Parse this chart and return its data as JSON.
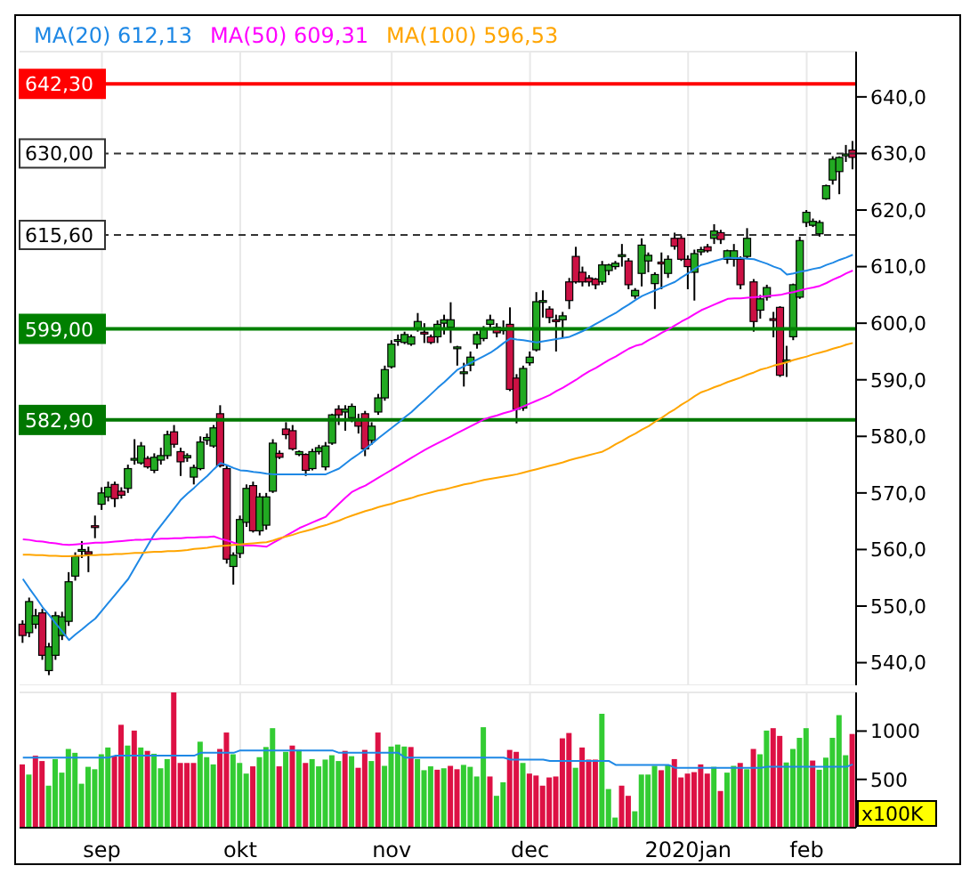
{
  "chart_data": [
    {
      "type": "candlestick",
      "legend": "top left",
      "grid": true,
      "tick_labels": "y",
      "categories": [
        null,
        null,
        null,
        null,
        null,
        null,
        null,
        null,
        null,
        null,
        null,
        null,
        null,
        null,
        null,
        null,
        null,
        null,
        null,
        null,
        null,
        null,
        null,
        null,
        null,
        null,
        null,
        null,
        null,
        null,
        null,
        null,
        null,
        null,
        null,
        null,
        null,
        null,
        null,
        null,
        null,
        null,
        null,
        null,
        null,
        null,
        null,
        null,
        null,
        null,
        null,
        null,
        null,
        null,
        null,
        null,
        null,
        null,
        null,
        null,
        null,
        null,
        null,
        null,
        null,
        null,
        null,
        null,
        null,
        null,
        null,
        null,
        null,
        null,
        null,
        null,
        null,
        null,
        null,
        null,
        null,
        null,
        null,
        null,
        null,
        null,
        null,
        null,
        null,
        null,
        null,
        null,
        null,
        null,
        null,
        null,
        null,
        null,
        null,
        null,
        null,
        null,
        null,
        null,
        null,
        null,
        null,
        null,
        null,
        null,
        null,
        null,
        null,
        null,
        null,
        null,
        null,
        null,
        null,
        null,
        null,
        null,
        null,
        null,
        null,
        null,
        null
      ],
      "ohlc": [
        [
          546.8,
          547.5,
          543.5,
          544.8
        ],
        [
          545.3,
          551.5,
          544.5,
          550.8
        ],
        [
          546.8,
          549.5,
          546,
          548.3
        ],
        [
          548.8,
          549.5,
          540.5,
          541.3
        ],
        [
          538.6,
          543.5,
          537.8,
          542.8
        ],
        [
          541.3,
          549,
          540.5,
          548.3
        ],
        [
          544.8,
          549,
          544,
          548.1
        ],
        [
          547.3,
          556,
          546.5,
          554.3
        ],
        [
          555.3,
          559.5,
          554.5,
          558.8
        ],
        [
          559.8,
          561.5,
          558.5,
          560
        ],
        [
          559.6,
          560.5,
          556,
          559.2
        ],
        [
          564.2,
          566,
          562,
          564
        ],
        [
          568,
          571,
          567,
          570
        ],
        [
          569.3,
          572,
          568.5,
          571
        ],
        [
          571.5,
          572,
          567.5,
          569
        ],
        [
          570.3,
          571,
          569,
          569.6
        ],
        [
          570.8,
          575,
          570,
          574.3
        ],
        [
          576,
          579.5,
          575,
          576.1
        ],
        [
          575.3,
          579,
          575,
          578.3
        ],
        [
          576.1,
          576.5,
          574.3,
          574.6
        ],
        [
          574,
          577,
          573.5,
          576.3
        ],
        [
          575.8,
          578,
          575,
          576.6
        ],
        [
          576.6,
          581,
          576,
          580.3
        ],
        [
          580.8,
          582,
          578,
          578.6
        ],
        [
          577.3,
          578,
          573,
          575.5
        ],
        [
          576.2,
          577,
          575.5,
          576.6
        ],
        [
          572.8,
          575,
          571.5,
          574.5
        ],
        [
          574.3,
          580,
          574,
          579
        ],
        [
          579.3,
          580.5,
          578.5,
          579.8
        ],
        [
          578.3,
          582,
          578,
          581.5
        ],
        [
          584,
          585.5,
          574.5,
          574.8
        ],
        [
          574.3,
          575,
          557.5,
          558.3
        ],
        [
          557,
          559.5,
          553.8,
          559
        ],
        [
          559.3,
          566,
          558.5,
          565.3
        ],
        [
          564.8,
          571.5,
          564,
          570.8
        ],
        [
          571.3,
          572,
          563,
          563.3
        ],
        [
          563.3,
          570,
          562.5,
          569.3
        ],
        [
          564.3,
          570,
          563.5,
          569.3
        ],
        [
          570.3,
          579.5,
          570,
          578.8
        ],
        [
          577,
          577.5,
          576,
          576.3
        ],
        [
          581.3,
          582.5,
          579.5,
          580.3
        ],
        [
          581,
          582,
          577.5,
          577.8
        ],
        [
          576.8,
          577.5,
          576.5,
          577.3
        ],
        [
          576.8,
          577,
          573,
          574
        ],
        [
          574.3,
          577.8,
          574,
          577.3
        ],
        [
          577.3,
          578.5,
          576.8,
          578
        ],
        [
          574.6,
          579,
          574,
          578.3
        ],
        [
          578.8,
          584,
          578.5,
          583.8
        ],
        [
          584.8,
          585.5,
          582,
          583.8
        ],
        [
          584.3,
          585.5,
          581,
          584.8
        ],
        [
          583.3,
          585.8,
          582.5,
          585.3
        ],
        [
          583,
          584,
          580.5,
          581.8
        ],
        [
          584,
          584.5,
          576.5,
          577.8
        ],
        [
          579.3,
          582.5,
          578.5,
          581.8
        ],
        [
          584.3,
          587.5,
          583.8,
          586.8
        ],
        [
          586.8,
          592.5,
          586.3,
          591.8
        ],
        [
          592.3,
          597,
          592,
          596.3
        ],
        [
          597,
          598,
          596,
          597.1
        ],
        [
          596.6,
          598.5,
          596.3,
          598
        ],
        [
          596.3,
          598,
          596,
          597.6
        ],
        [
          599,
          601.8,
          598.5,
          600.3
        ],
        [
          598.4,
          600,
          596.5,
          598.3
        ],
        [
          597.6,
          598,
          596.3,
          596.6
        ],
        [
          597.6,
          600.5,
          596.5,
          599.8
        ],
        [
          600,
          601.5,
          598,
          600.6
        ],
        [
          599.3,
          603.7,
          596.5,
          600.6
        ],
        [
          595.6,
          596,
          592.5,
          595.8
        ],
        [
          591.3,
          593,
          588.8,
          591.4
        ],
        [
          592.6,
          595,
          591.5,
          594
        ],
        [
          596.3,
          598.5,
          595.5,
          598
        ],
        [
          597.3,
          599.5,
          596.8,
          599
        ],
        [
          599.8,
          601.5,
          599,
          600.6
        ],
        [
          599.3,
          600,
          597.5,
          598.3
        ],
        [
          599,
          600.5,
          598,
          598.9
        ],
        [
          599.8,
          602.8,
          588,
          588.3
        ],
        [
          590.3,
          591,
          582.3,
          584.8
        ],
        [
          585,
          592.5,
          584.5,
          592
        ],
        [
          593,
          595,
          592.5,
          594
        ],
        [
          595.3,
          605.5,
          595,
          603.8
        ],
        [
          603.8,
          605.8,
          601,
          604
        ],
        [
          602.5,
          603,
          600,
          601
        ],
        [
          600.6,
          601.5,
          595,
          600.5
        ],
        [
          600.6,
          602,
          597.5,
          601.3
        ],
        [
          607.3,
          608,
          602.5,
          604
        ],
        [
          611.8,
          613.5,
          607,
          607.3
        ],
        [
          609,
          610,
          606.5,
          607.3
        ],
        [
          608,
          608.5,
          606.5,
          607.3
        ],
        [
          607.8,
          608,
          606,
          606.8
        ],
        [
          607.3,
          611,
          606.8,
          610.3
        ],
        [
          609.3,
          610.5,
          608.5,
          610.3
        ],
        [
          610,
          611,
          609.5,
          610.6
        ],
        [
          612,
          614,
          610,
          612.1
        ],
        [
          611,
          611.5,
          606,
          606.8
        ],
        [
          604.8,
          606.2,
          604.3,
          605.8
        ],
        [
          608.8,
          615,
          606.5,
          613.8
        ],
        [
          611,
          612.5,
          609,
          612
        ],
        [
          607,
          609,
          602.5,
          608.6
        ],
        [
          610.8,
          612.5,
          606,
          610.7
        ],
        [
          608.8,
          612,
          608,
          611.3
        ],
        [
          615,
          616,
          613,
          613.6
        ],
        [
          615,
          615.5,
          611,
          611.3
        ],
        [
          611.3,
          612,
          606,
          610
        ],
        [
          609,
          613,
          604,
          612.3
        ],
        [
          612.6,
          613.5,
          612,
          613
        ],
        [
          613.5,
          614,
          612.5,
          612.8
        ],
        [
          615,
          617.5,
          614,
          616.3
        ],
        [
          616,
          616.5,
          614,
          614.8
        ],
        [
          611.3,
          613,
          610.5,
          612.8
        ],
        [
          611.3,
          614,
          610,
          612.8
        ],
        [
          611.3,
          611.8,
          606,
          606.8
        ],
        [
          611.8,
          616.8,
          611.5,
          615
        ],
        [
          607.3,
          607.8,
          598.5,
          600.3
        ],
        [
          602.3,
          605,
          600.8,
          604.3
        ],
        [
          604.6,
          606.8,
          604,
          606.3
        ],
        [
          600.8,
          602,
          597.5,
          600.7
        ],
        [
          602.8,
          603,
          590.5,
          590.8
        ],
        [
          593.3,
          596,
          590.5,
          593.5
        ],
        [
          597.6,
          607,
          597,
          606.8
        ],
        [
          604.6,
          615.3,
          604.3,
          614.6
        ],
        [
          617.8,
          620,
          617,
          619.6
        ],
        [
          617.3,
          618.5,
          617,
          618
        ],
        [
          615.8,
          618.2,
          615.3,
          617.8
        ],
        [
          622,
          624.5,
          621.8,
          624.3
        ],
        [
          625.3,
          629.5,
          624.5,
          629
        ],
        [
          626.8,
          629.5,
          622.8,
          629.3
        ],
        [
          629.8,
          631.5,
          628.5,
          629.9
        ],
        [
          630.6,
          632.2,
          627.2,
          629.3
        ]
      ],
      "colors": [
        "#cc1144",
        "#22aa22",
        "#22aa22",
        "#cc1144",
        "#22aa22",
        "#22aa22",
        "#22aa22",
        "#22aa22",
        "#22aa22",
        "#22aa22",
        "#cc1144",
        "#cc1144",
        "#22aa22",
        "#22aa22",
        "#cc1144",
        "#cc1144",
        "#22aa22",
        "#22aa22",
        "#22aa22",
        "#cc1144",
        "#22aa22",
        "#22aa22",
        "#22aa22",
        "#cc1144",
        "#cc1144",
        "#22aa22",
        "#22aa22",
        "#22aa22",
        "#22aa22",
        "#22aa22",
        "#cc1144",
        "#cc1144",
        "#22aa22",
        "#22aa22",
        "#22aa22",
        "#cc1144",
        "#22aa22",
        "#22aa22",
        "#22aa22",
        "#cc1144",
        "#cc1144",
        "#cc1144",
        "#22aa22",
        "#cc1144",
        "#22aa22",
        "#22aa22",
        "#22aa22",
        "#22aa22",
        "#cc1144",
        "#22aa22",
        "#22aa22",
        "#cc1144",
        "#cc1144",
        "#22aa22",
        "#22aa22",
        "#22aa22",
        "#22aa22",
        "#22aa22",
        "#22aa22",
        "#22aa22",
        "#22aa22",
        "#cc1144",
        "#cc1144",
        "#22aa22",
        "#22aa22",
        "#22aa22",
        "#22aa22",
        "#22aa22",
        "#22aa22",
        "#22aa22",
        "#22aa22",
        "#22aa22",
        "#cc1144",
        "#cc1144",
        "#cc1144",
        "#cc1144",
        "#22aa22",
        "#22aa22",
        "#22aa22",
        "#22aa22",
        "#cc1144",
        "#cc1144",
        "#22aa22",
        "#cc1144",
        "#cc1144",
        "#cc1144",
        "#cc1144",
        "#cc1144",
        "#22aa22",
        "#22aa22",
        "#22aa22",
        "#22aa22",
        "#cc1144",
        "#22aa22",
        "#22aa22",
        "#22aa22",
        "#22aa22",
        "#cc1144",
        "#22aa22",
        "#cc1144",
        "#cc1144",
        "#cc1144",
        "#22aa22",
        "#22aa22",
        "#cc1144",
        "#22aa22",
        "#cc1144",
        "#22aa22",
        "#22aa22",
        "#cc1144",
        "#22aa22",
        "#cc1144",
        "#22aa22",
        "#22aa22",
        "#cc1144",
        "#cc1144",
        "#22aa22",
        "#22aa22",
        "#22aa22",
        "#22aa22",
        "#22aa22",
        "#22aa22",
        "#22aa22",
        "#22aa22",
        "#22aa22",
        "#22aa22",
        "#cc1144"
      ],
      "series": [
        {
          "name": "MA(20) 612,13",
          "type": "line",
          "color": "#1e88e5",
          "values": [
            554.8,
            553.1,
            551.5,
            549.8,
            548.4,
            546.9,
            545.5,
            544,
            545,
            545.9,
            546.9,
            547.8,
            549.2,
            550.6,
            552,
            553.4,
            554.8,
            556.8,
            558.8,
            560.8,
            562.8,
            564.3,
            565.8,
            567.3,
            568.8,
            569.9,
            570.9,
            572,
            573,
            574.2,
            575.3,
            574.9,
            574.4,
            574,
            573.9,
            573.7,
            573.6,
            573.4,
            573.3,
            573.3,
            573.3,
            573.3,
            573.3,
            573.3,
            573.3,
            573.3,
            573.3,
            573.8,
            574.3,
            575.2,
            576.1,
            576.9,
            577.8,
            578.7,
            579.7,
            580.6,
            581.5,
            582.4,
            583.4,
            584.3,
            585.4,
            586.4,
            587.5,
            588.6,
            589.6,
            590.7,
            591.8,
            592.4,
            593,
            593.6,
            594.2,
            594.8,
            595.6,
            596.5,
            597.3,
            597.1,
            597,
            596.8,
            596.6,
            596.8,
            597,
            597.2,
            597.4,
            597.6,
            598.1,
            598.6,
            599.2,
            599.9,
            600.5,
            601.2,
            601.8,
            602.6,
            603.3,
            604.1,
            604.8,
            605.3,
            605.8,
            606.3,
            606.8,
            607.3,
            608.1,
            608.8,
            609.6,
            610.3,
            610.6,
            611,
            611.3,
            611.6,
            611.5,
            611.5,
            611.4,
            611.3,
            610.9,
            610.5,
            610,
            609.6,
            608.6,
            608.8,
            609.1,
            609.3,
            609.6,
            609.8,
            610.3,
            610.7,
            611.2,
            611.6,
            612.1
          ]
        },
        {
          "name": "MA(50) 609,31",
          "type": "line",
          "color": "#ff00ff",
          "values": [
            561.8,
            561.7,
            561.5,
            561.4,
            561.2,
            561.1,
            560.9,
            560.8,
            560.9,
            561,
            561.1,
            561.2,
            561.2,
            561.3,
            561.4,
            561.5,
            561.6,
            561.7,
            561.7,
            561.8,
            561.8,
            561.9,
            561.9,
            562,
            562,
            562.1,
            562.1,
            562.2,
            562.2,
            562.3,
            561.9,
            561.6,
            561.2,
            560.8,
            560.7,
            560.7,
            560.6,
            560.5,
            561.2,
            561.8,
            562.5,
            563.1,
            563.8,
            564.3,
            564.8,
            565.3,
            565.8,
            567,
            568.1,
            569.2,
            570.2,
            570.8,
            571.3,
            572,
            572.7,
            573.4,
            574.1,
            574.8,
            575.5,
            576.2,
            576.9,
            577.6,
            578.2,
            578.8,
            579.4,
            580,
            580.6,
            581.2,
            581.8,
            582.4,
            583,
            583.4,
            583.7,
            584.1,
            584.4,
            584.8,
            585.3,
            585.8,
            586.3,
            586.8,
            587.3,
            588,
            588.6,
            589.3,
            590,
            590.8,
            591.5,
            592.1,
            592.8,
            593.5,
            594.1,
            594.8,
            595.5,
            596,
            596.3,
            597,
            597.6,
            598.3,
            598.9,
            599.6,
            600.3,
            600.9,
            601.6,
            602.3,
            602.8,
            603.3,
            603.8,
            604.3,
            604.4,
            604.4,
            604.5,
            604.6,
            604.7,
            604.8,
            604.9,
            605,
            605.3,
            605.5,
            605.8,
            606.1,
            606.3,
            606.6,
            607.1,
            607.7,
            608.2,
            608.8,
            609.3
          ]
        },
        {
          "name": "MA(100) 596,53",
          "type": "line",
          "color": "#ffa500",
          "values": [
            559.1,
            559.1,
            559,
            559,
            558.9,
            558.9,
            558.8,
            558.8,
            558.9,
            558.9,
            559,
            559,
            559.1,
            559.1,
            559.2,
            559.2,
            559.3,
            559.4,
            559.4,
            559.5,
            559.6,
            559.6,
            559.7,
            559.7,
            559.8,
            559.9,
            560.1,
            560.2,
            560.3,
            560.5,
            560.6,
            560.7,
            560.8,
            560.9,
            561,
            561.1,
            561.2,
            561.3,
            561.6,
            562,
            562.3,
            562.6,
            563,
            563.3,
            563.6,
            564,
            564.3,
            564.7,
            565.1,
            565.6,
            566,
            566.4,
            566.8,
            567.1,
            567.5,
            567.8,
            568.1,
            568.5,
            568.8,
            569.1,
            569.5,
            569.8,
            570.1,
            570.4,
            570.6,
            570.9,
            571.2,
            571.5,
            571.7,
            572,
            572.3,
            572.5,
            572.7,
            572.9,
            573.1,
            573.3,
            573.6,
            573.9,
            574.2,
            574.5,
            574.8,
            575.1,
            575.4,
            575.8,
            576.1,
            576.4,
            576.7,
            577,
            577.3,
            577.9,
            578.6,
            579.2,
            579.9,
            580.5,
            581.2,
            581.8,
            582.6,
            583.3,
            584.1,
            584.8,
            585.6,
            586.3,
            587.1,
            587.8,
            588.2,
            588.7,
            589.1,
            589.6,
            590,
            590.4,
            590.9,
            591.3,
            591.8,
            592.1,
            592.5,
            592.8,
            593.1,
            593.5,
            593.8,
            594.1,
            594.5,
            594.8,
            595.1,
            595.5,
            595.8,
            596.2,
            596.5
          ]
        }
      ],
      "ylim": [
        536,
        648
      ],
      "yticks": [
        {
          "value": 540,
          "label": "540,0"
        },
        {
          "value": 550,
          "label": "550,0"
        },
        {
          "value": 560,
          "label": "560,0"
        },
        {
          "value": 570,
          "label": "570,0"
        },
        {
          "value": 580,
          "label": "580,0"
        },
        {
          "value": 590,
          "label": "590,0"
        },
        {
          "value": 600,
          "label": "600,0"
        },
        {
          "value": 610,
          "label": "610,0"
        },
        {
          "value": 620,
          "label": "620,0"
        },
        {
          "value": 630,
          "label": "630,0"
        },
        {
          "value": 640,
          "label": "640,0"
        }
      ],
      "ref_lines": [
        {
          "axis": "y",
          "value": 642.3,
          "label": "642,30",
          "color": "#ff0000",
          "line_style": "solid"
        },
        {
          "axis": "y",
          "value": 630,
          "label": "630,00",
          "color": "#333333",
          "line_style": "dashed"
        },
        {
          "axis": "y",
          "value": 615.6,
          "label": "615,60",
          "color": "#333333",
          "line_style": "dashed"
        },
        {
          "axis": "y",
          "value": 599,
          "label": "599,00",
          "color": "#008000",
          "line_style": "solid"
        },
        {
          "axis": "y",
          "value": 582.9,
          "label": "582,90",
          "color": "#007700",
          "line_style": "solid"
        }
      ]
    },
    {
      "type": "bar",
      "grid": true,
      "ylabel": "x100K",
      "categories": [
        null,
        null,
        null,
        null,
        null,
        null,
        null,
        null,
        null,
        null,
        null,
        null,
        "sep",
        null,
        null,
        null,
        null,
        null,
        null,
        null,
        null,
        null,
        null,
        null,
        null,
        null,
        null,
        null,
        null,
        null,
        null,
        null,
        null,
        "okt",
        null,
        null,
        null,
        null,
        null,
        null,
        null,
        null,
        null,
        null,
        null,
        null,
        null,
        null,
        null,
        null,
        null,
        null,
        null,
        null,
        null,
        null,
        "nov",
        null,
        null,
        null,
        null,
        null,
        null,
        null,
        null,
        null,
        null,
        null,
        null,
        null,
        null,
        null,
        null,
        null,
        null,
        null,
        null,
        "dec",
        null,
        null,
        null,
        null,
        null,
        null,
        null,
        null,
        null,
        null,
        null,
        null,
        null,
        null,
        null,
        null,
        null,
        null,
        null,
        null,
        null,
        null,
        null,
        "2020jan",
        null,
        null,
        null,
        null,
        null,
        null,
        null,
        null,
        null,
        null,
        null,
        null,
        null,
        null,
        null,
        null,
        null,
        "feb",
        null,
        null,
        null,
        null,
        null,
        null,
        null
      ],
      "series": [
        {
          "type": "bar",
          "values": [
            655,
            550,
            745,
            690,
            435,
            710,
            570,
            815,
            775,
            455,
            630,
            605,
            760,
            830,
            745,
            1065,
            850,
            1005,
            830,
            795,
            765,
            615,
            710,
            1400,
            670,
            670,
            670,
            890,
            730,
            655,
            815,
            985,
            760,
            670,
            560,
            635,
            730,
            835,
            1030,
            635,
            785,
            850,
            805,
            670,
            710,
            635,
            705,
            750,
            690,
            795,
            740,
            620,
            805,
            690,
            985,
            640,
            840,
            860,
            840,
            835,
            710,
            595,
            635,
            600,
            615,
            640,
            605,
            650,
            630,
            530,
            1040,
            530,
            330,
            470,
            805,
            785,
            670,
            560,
            540,
            435,
            520,
            530,
            925,
            980,
            620,
            830,
            705,
            705,
            1180,
            400,
            105,
            435,
            330,
            170,
            550,
            550,
            640,
            595,
            650,
            710,
            520,
            560,
            575,
            655,
            560,
            630,
            380,
            570,
            640,
            670,
            605,
            815,
            760,
            1005,
            1030,
            950,
            675,
            815,
            930,
            1030,
            695,
            600,
            725,
            930,
            1165,
            750,
            970
          ],
          "colors": [
            "#dd1144",
            "#33cc33",
            "#dd1144",
            "#dd1144",
            "#33cc33",
            "#33cc33",
            "#33cc33",
            "#33cc33",
            "#33cc33",
            "#33cc33",
            "#33cc33",
            "#33cc33",
            "#33cc33",
            "#33cc33",
            "#dd1144",
            "#dd1144",
            "#33cc33",
            "#dd1144",
            "#33cc33",
            "#dd1144",
            "#33cc33",
            "#33cc33",
            "#33cc33",
            "#dd1144",
            "#dd1144",
            "#dd1144",
            "#dd1144",
            "#33cc33",
            "#33cc33",
            "#33cc33",
            "#dd1144",
            "#dd1144",
            "#33cc33",
            "#33cc33",
            "#33cc33",
            "#dd1144",
            "#33cc33",
            "#33cc33",
            "#33cc33",
            "#dd1144",
            "#33cc33",
            "#dd1144",
            "#33cc33",
            "#dd1144",
            "#33cc33",
            "#33cc33",
            "#33cc33",
            "#33cc33",
            "#33cc33",
            "#dd1144",
            "#33cc33",
            "#dd1144",
            "#dd1144",
            "#33cc33",
            "#dd1144",
            "#33cc33",
            "#33cc33",
            "#33cc33",
            "#33cc33",
            "#dd1144",
            "#33cc33",
            "#33cc33",
            "#33cc33",
            "#dd1144",
            "#33cc33",
            "#dd1144",
            "#dd1144",
            "#33cc33",
            "#33cc33",
            "#33cc33",
            "#33cc33",
            "#dd1144",
            "#33cc33",
            "#33cc33",
            "#dd1144",
            "#dd1144",
            "#33cc33",
            "#dd1144",
            "#dd1144",
            "#dd1144",
            "#dd1144",
            "#dd1144",
            "#dd1144",
            "#dd1144",
            "#33cc33",
            "#dd1144",
            "#dd1144",
            "#dd1144",
            "#33cc33",
            "#33cc33",
            "#33cc33",
            "#dd1144",
            "#dd1144",
            "#33cc33",
            "#33cc33",
            "#33cc33",
            "#33cc33",
            "#dd1144",
            "#33cc33",
            "#dd1144",
            "#dd1144",
            "#dd1144",
            "#dd1144",
            "#dd1144",
            "#dd1144",
            "#33cc33",
            "#dd1144",
            "#33cc33",
            "#33cc33",
            "#dd1144",
            "#33cc33",
            "#dd1144",
            "#33cc33",
            "#33cc33",
            "#dd1144",
            "#dd1144",
            "#33cc33",
            "#33cc33",
            "#33cc33",
            "#33cc33",
            "#dd1144",
            "#33cc33",
            "#33cc33",
            "#33cc33",
            "#33cc33",
            "#33cc33",
            "#dd1144"
          ]
        },
        {
          "type": "line",
          "color": "#1e88e5",
          "values": [
            725,
            725,
            725,
            725,
            725,
            725,
            725,
            725,
            725,
            725,
            725,
            725,
            725,
            725,
            745,
            745,
            745,
            745,
            745,
            745,
            745,
            745,
            745,
            745,
            745,
            745,
            745,
            775,
            775,
            775,
            775,
            775,
            775,
            800,
            800,
            800,
            800,
            800,
            800,
            800,
            800,
            800,
            800,
            800,
            800,
            800,
            800,
            800,
            775,
            775,
            775,
            775,
            775,
            775,
            775,
            775,
            775,
            775,
            725,
            725,
            725,
            725,
            725,
            725,
            725,
            725,
            725,
            725,
            725,
            725,
            725,
            725,
            725,
            725,
            705,
            705,
            705,
            705,
            705,
            705,
            690,
            690,
            690,
            690,
            690,
            690,
            690,
            690,
            690,
            690,
            650,
            650,
            650,
            650,
            650,
            650,
            650,
            650,
            650,
            620,
            620,
            620,
            620,
            620,
            620,
            620,
            620,
            620,
            620,
            620,
            620,
            620,
            620,
            630,
            630,
            630,
            630,
            630,
            630,
            630,
            630,
            630,
            630,
            630,
            630,
            630,
            655
          ]
        }
      ],
      "ylim": [
        0,
        1400
      ],
      "yticks": [
        500,
        1000
      ]
    }
  ]
}
